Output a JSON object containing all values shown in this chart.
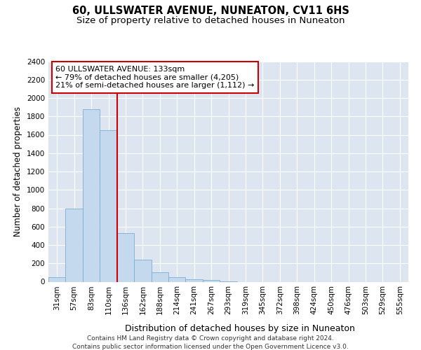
{
  "title": "60, ULLSWATER AVENUE, NUNEATON, CV11 6HS",
  "subtitle": "Size of property relative to detached houses in Nuneaton",
  "xlabel": "Distribution of detached houses by size in Nuneaton",
  "ylabel": "Number of detached properties",
  "categories": [
    "31sqm",
    "57sqm",
    "83sqm",
    "110sqm",
    "136sqm",
    "162sqm",
    "188sqm",
    "214sqm",
    "241sqm",
    "267sqm",
    "293sqm",
    "319sqm",
    "345sqm",
    "372sqm",
    "398sqm",
    "424sqm",
    "450sqm",
    "476sqm",
    "503sqm",
    "529sqm",
    "555sqm"
  ],
  "values": [
    50,
    800,
    1880,
    1650,
    530,
    240,
    105,
    50,
    30,
    20,
    5,
    0,
    0,
    0,
    0,
    0,
    0,
    0,
    0,
    0,
    0
  ],
  "bar_color": "#c5d9ee",
  "bar_edge_color": "#7aafd4",
  "highlight_line_color": "#cc0000",
  "annotation_line1": "60 ULLSWATER AVENUE: 133sqm",
  "annotation_line2": "← 79% of detached houses are smaller (4,205)",
  "annotation_line3": "21% of semi-detached houses are larger (1,112) →",
  "annotation_box_color": "white",
  "annotation_box_edge": "#cc0000",
  "ylim": [
    0,
    2400
  ],
  "yticks": [
    0,
    200,
    400,
    600,
    800,
    1000,
    1200,
    1400,
    1600,
    1800,
    2000,
    2200,
    2400
  ],
  "footer_line1": "Contains HM Land Registry data © Crown copyright and database right 2024.",
  "footer_line2": "Contains public sector information licensed under the Open Government Licence v3.0.",
  "title_fontsize": 10.5,
  "subtitle_fontsize": 9.5,
  "xlabel_fontsize": 9,
  "ylabel_fontsize": 8.5,
  "tick_fontsize": 7.5,
  "annotation_fontsize": 8,
  "footer_fontsize": 6.5,
  "grid_color": "#ffffff",
  "bg_color": "#dde6f0"
}
